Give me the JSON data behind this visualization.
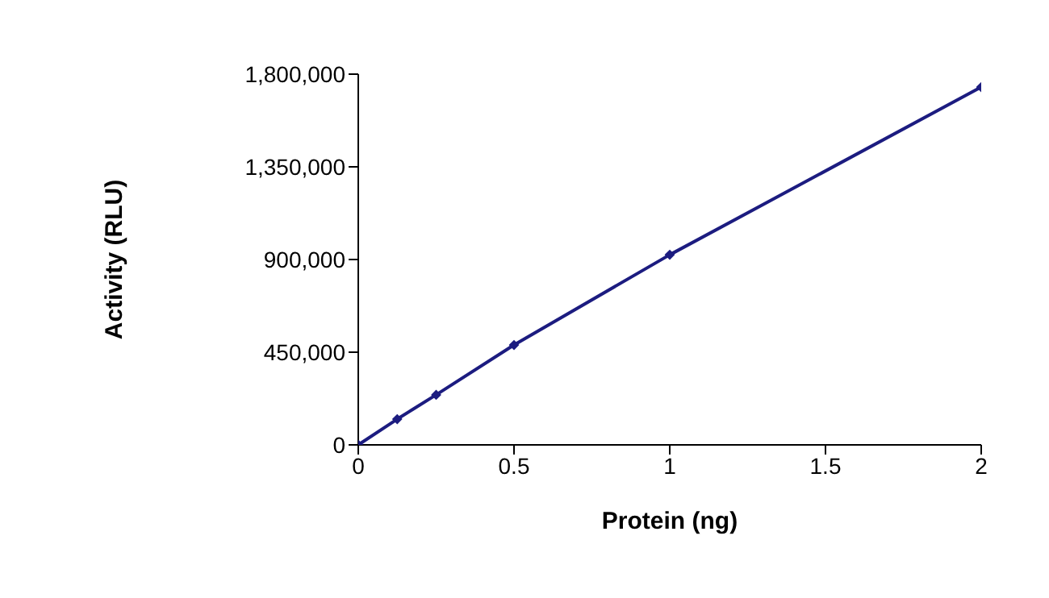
{
  "chart_data": {
    "type": "line",
    "xlabel": "Protein (ng)",
    "ylabel": "Activity (RLU)",
    "x": [
      0,
      0.125,
      0.25,
      0.5,
      1,
      2
    ],
    "series": [
      {
        "color": "#1c1c80",
        "values": [
          0,
          125000,
          243000,
          485000,
          923000,
          1737000
        ]
      }
    ],
    "xlim": [
      0,
      2
    ],
    "xticks": [
      0,
      0.5,
      1,
      1.5,
      2
    ],
    "ylim": [
      0,
      1800000
    ],
    "yticks": [
      0,
      {
        "value": 450000,
        "label": "450,000"
      },
      {
        "value": 900000,
        "label": "900,000"
      },
      {
        "value": 1350000,
        "label": "1,350,000"
      },
      {
        "value": 1800000,
        "label": "1,800,000"
      }
    ],
    "grid": false,
    "legend": false,
    "marker": "diamond",
    "line_style": "solid"
  }
}
